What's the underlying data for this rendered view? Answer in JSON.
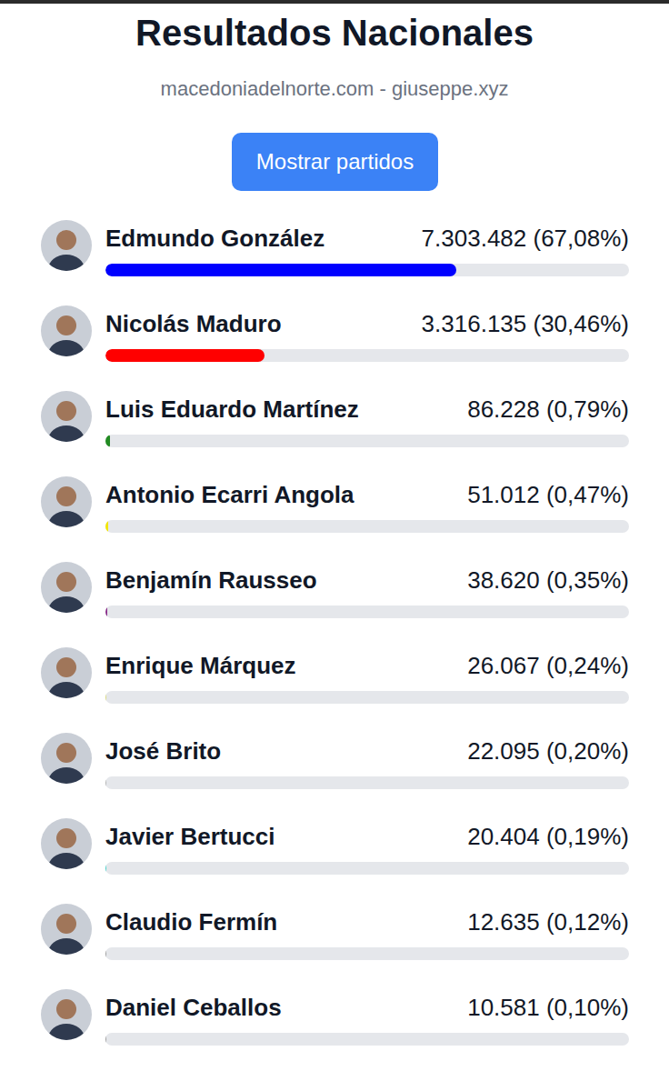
{
  "chart_data": {
    "type": "bar",
    "orientation": "horizontal",
    "title": "Resultados Nacionales",
    "subtitle": "macedoniadelnorte.com - giuseppe.xyz",
    "annotations": [
      "Mostrar partidos"
    ],
    "categories": [
      "Edmundo González",
      "Nicolás Maduro",
      "Luis Eduardo Martínez",
      "Antonio Ecarri Angola",
      "Benjamín Rausseo",
      "Enrique Márquez",
      "José Brito",
      "Javier Bertucci",
      "Claudio Fermín",
      "Daniel Ceballos"
    ],
    "values": [
      67.08,
      30.46,
      0.79,
      0.47,
      0.35,
      0.24,
      0.2,
      0.19,
      0.12,
      0.1
    ],
    "value_labels": [
      "7.303.482 (67,08%)",
      "3.316.135 (30,46%)",
      "86.228 (0,79%)",
      "51.012 (0,47%)",
      "38.620 (0,35%)",
      "26.067 (0,24%)",
      "22.095 (0,20%)",
      "20.404 (0,19%)",
      "12.635 (0,12%)",
      "10.581 (0,10%)"
    ],
    "colors": [
      "#0000ff",
      "#ff0000",
      "#228b22",
      "#f2e600",
      "#8b2f8b",
      "#d9d97a",
      "#b0b0b0",
      "#40d0c8",
      "#9a9a9a",
      "#9a9a9a"
    ],
    "xlim": [
      0,
      100
    ],
    "data_labels": true,
    "tick_labels": false
  }
}
